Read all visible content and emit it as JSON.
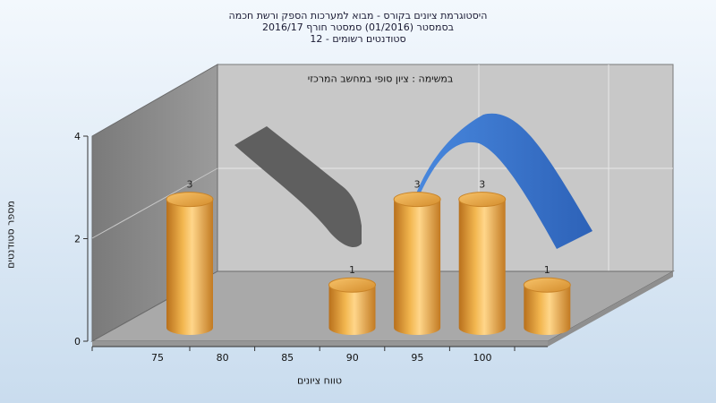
{
  "title": {
    "line1": "היסטוגרמת ציונים בקורס - מבוא למערכות הספק ורשת חכמה",
    "line2": "בסמסטר  (01/2016)  סמסטר חורף 2016/17",
    "line3": "סטודנטים רשומים - 12"
  },
  "chart_data": {
    "type": "bar",
    "title": "היסטוגרמת ציונים בקורס - מבוא למערכות הספק ורשת חכמה",
    "xlabel": "טווח ציונים",
    "ylabel": "מספר סטודנטים",
    "annotation": "במשימה : ציון סופי במחשב המרכזי",
    "x_ticks": [
      75,
      80,
      85,
      90,
      95,
      100
    ],
    "y_ticks": [
      0,
      2,
      4
    ],
    "ylim": [
      0,
      4
    ],
    "bars": [
      {
        "x": 75,
        "value": 3,
        "label": "3"
      },
      {
        "x": 87.5,
        "value": 1,
        "label": "1"
      },
      {
        "x": 92.5,
        "value": 3,
        "label": "3"
      },
      {
        "x": 97.5,
        "value": 3,
        "label": "3"
      },
      {
        "x": 102.5,
        "value": 1,
        "label": "1"
      }
    ],
    "colors": {
      "bar": "#e8a33c",
      "curve_front": "#3a7bd5",
      "curve_back": "#5a5a5a",
      "wall_left": "#8c8c8c",
      "wall_back": "#c8c8c8",
      "floor": "#a9a9a9"
    }
  }
}
